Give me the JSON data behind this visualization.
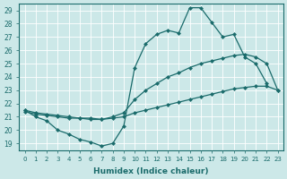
{
  "xlabel": "Humidex (Indice chaleur)",
  "bg_color": "#cce8e8",
  "line_color": "#1a6b6b",
  "grid_color": "#ffffff",
  "xlim": [
    -0.5,
    23.5
  ],
  "ylim": [
    18.5,
    29.5
  ],
  "yticks": [
    19,
    20,
    21,
    22,
    23,
    24,
    25,
    26,
    27,
    28,
    29
  ],
  "xticks": [
    0,
    1,
    2,
    3,
    4,
    5,
    6,
    7,
    8,
    9,
    10,
    11,
    12,
    13,
    14,
    15,
    16,
    17,
    18,
    19,
    20,
    21,
    22,
    23
  ],
  "line1_x": [
    0,
    1,
    2,
    3,
    4,
    5,
    6,
    7,
    8,
    9,
    10,
    11,
    12,
    13,
    14,
    15,
    16,
    17,
    18,
    19,
    20,
    21,
    22,
    23
  ],
  "line1_y": [
    21.5,
    21.0,
    20.7,
    20.0,
    19.7,
    19.3,
    19.1,
    18.8,
    19.0,
    20.3,
    24.7,
    26.5,
    27.2,
    27.5,
    27.3,
    29.2,
    29.2,
    28.1,
    27.0,
    27.2,
    25.5,
    25.0,
    23.5,
    null
  ],
  "line2_x": [
    0,
    1,
    2,
    3,
    4,
    5,
    6,
    7,
    8,
    9,
    10,
    11,
    12,
    13,
    14,
    15,
    16,
    17,
    18,
    19,
    20,
    21,
    22,
    23
  ],
  "line2_y": [
    21.5,
    21.3,
    21.2,
    21.1,
    21.0,
    20.9,
    20.9,
    20.8,
    21.0,
    21.3,
    22.3,
    23.0,
    23.5,
    24.0,
    24.3,
    24.7,
    25.0,
    25.2,
    25.4,
    25.6,
    25.7,
    25.5,
    25.0,
    23.0
  ],
  "line3_x": [
    0,
    1,
    2,
    3,
    4,
    5,
    6,
    7,
    8,
    9,
    10,
    11,
    12,
    13,
    14,
    15,
    16,
    17,
    18,
    19,
    20,
    21,
    22,
    23
  ],
  "line3_y": [
    21.4,
    21.2,
    21.1,
    21.0,
    20.9,
    20.9,
    20.8,
    20.8,
    20.9,
    21.0,
    21.3,
    21.5,
    21.7,
    21.9,
    22.1,
    22.3,
    22.5,
    22.7,
    22.9,
    23.1,
    23.2,
    23.3,
    23.3,
    23.0
  ],
  "marker_size": 2.5,
  "linewidth": 0.9
}
